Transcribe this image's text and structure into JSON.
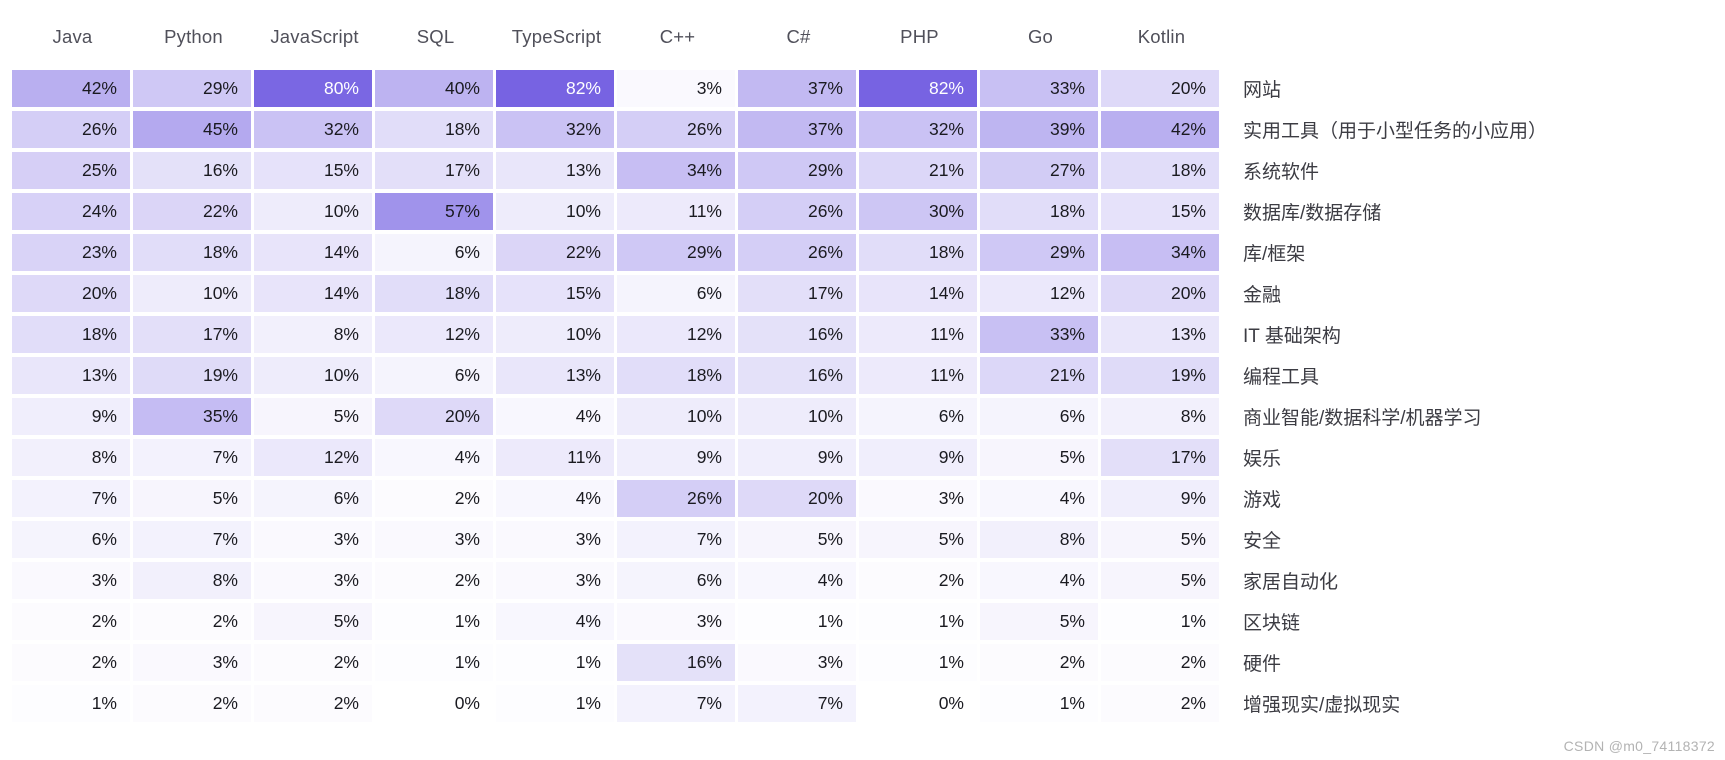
{
  "chart_data": {
    "type": "heatmap",
    "title": "",
    "xlabel": "",
    "ylabel": "",
    "legend": "none",
    "grid": false,
    "value_format": "percent",
    "columns": [
      "Java",
      "Python",
      "JavaScript",
      "SQL",
      "TypeScript",
      "C++",
      "C#",
      "PHP",
      "Go",
      "Kotlin"
    ],
    "rows": [
      {
        "label": "网站",
        "values": [
          42,
          29,
          80,
          40,
          82,
          3,
          37,
          82,
          33,
          20
        ]
      },
      {
        "label": "实用工具（用于小型任务的小应用）",
        "values": [
          26,
          45,
          32,
          18,
          32,
          26,
          37,
          32,
          39,
          42
        ]
      },
      {
        "label": "系统软件",
        "values": [
          25,
          16,
          15,
          17,
          13,
          34,
          29,
          21,
          27,
          18
        ]
      },
      {
        "label": "数据库/数据存储",
        "values": [
          24,
          22,
          10,
          57,
          10,
          11,
          26,
          30,
          18,
          15
        ]
      },
      {
        "label": "库/框架",
        "values": [
          23,
          18,
          14,
          6,
          22,
          29,
          26,
          18,
          29,
          34
        ]
      },
      {
        "label": "金融",
        "values": [
          20,
          10,
          14,
          18,
          15,
          6,
          17,
          14,
          12,
          20
        ]
      },
      {
        "label": "IT 基础架构",
        "values": [
          18,
          17,
          8,
          12,
          10,
          12,
          16,
          11,
          33,
          13
        ]
      },
      {
        "label": "编程工具",
        "values": [
          13,
          19,
          10,
          6,
          13,
          18,
          16,
          11,
          21,
          19
        ]
      },
      {
        "label": "商业智能/数据科学/机器学习",
        "values": [
          9,
          35,
          5,
          20,
          4,
          10,
          10,
          6,
          6,
          8
        ]
      },
      {
        "label": "娱乐",
        "values": [
          8,
          7,
          12,
          4,
          11,
          9,
          9,
          9,
          5,
          17
        ]
      },
      {
        "label": "游戏",
        "values": [
          7,
          5,
          6,
          2,
          4,
          26,
          20,
          3,
          4,
          9
        ]
      },
      {
        "label": "安全",
        "values": [
          6,
          7,
          3,
          3,
          3,
          7,
          5,
          5,
          8,
          5
        ]
      },
      {
        "label": "家居自动化",
        "values": [
          3,
          8,
          3,
          2,
          3,
          6,
          4,
          2,
          4,
          5
        ]
      },
      {
        "label": "区块链",
        "values": [
          2,
          2,
          5,
          1,
          4,
          3,
          1,
          1,
          5,
          1
        ]
      },
      {
        "label": "硬件",
        "values": [
          2,
          3,
          2,
          1,
          1,
          16,
          3,
          1,
          2,
          2
        ]
      },
      {
        "label": "增强现实/虚拟现实",
        "values": [
          1,
          2,
          2,
          0,
          1,
          7,
          7,
          0,
          1,
          2
        ]
      }
    ],
    "color_scale": {
      "min_value": 0,
      "max_value": 82,
      "min_color": "#ffffff",
      "max_color": "#7763e2",
      "white_text_threshold": 70
    }
  },
  "watermark": "CSDN @m0_74118372"
}
